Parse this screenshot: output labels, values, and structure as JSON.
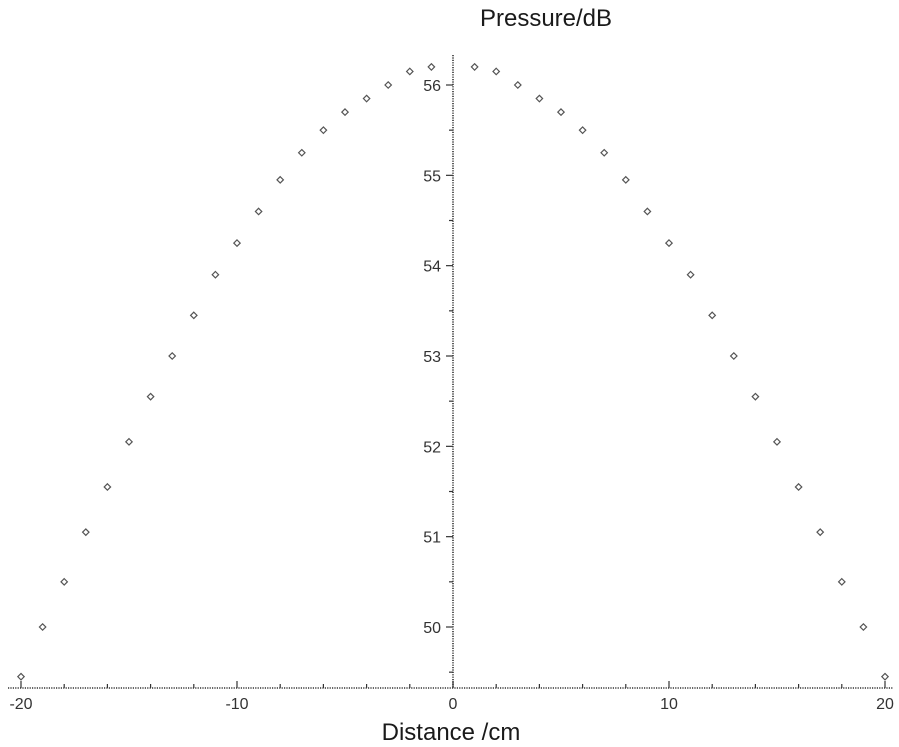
{
  "chart_data": {
    "type": "scatter",
    "title": "",
    "xlabel": "Distance /cm",
    "ylabel": "Pressure/dB",
    "xlim": [
      -20,
      20
    ],
    "ylim": [
      49.3,
      56.3
    ],
    "x_ticks": [
      -20,
      -10,
      0,
      10,
      20
    ],
    "x_tick_labels": [
      "-20",
      "-10",
      "0",
      "10",
      "20"
    ],
    "y_ticks": [
      50,
      51,
      52,
      53,
      54,
      55,
      56
    ],
    "y_tick_labels": [
      "50",
      "51",
      "52",
      "53",
      "54",
      "55",
      "56"
    ],
    "grid": false,
    "legend": "none",
    "marker_color": "#555555",
    "series": [
      {
        "x": [
          -20,
          -19,
          -18,
          -17,
          -16,
          -15,
          -14,
          -13,
          -12,
          -11,
          -10,
          -9,
          -8,
          -7,
          -6,
          -5,
          -4,
          -3,
          -2,
          -1,
          1,
          2,
          3,
          4,
          5,
          6,
          7,
          8,
          9,
          10,
          11,
          12,
          13,
          14,
          15,
          16,
          17,
          18,
          19,
          20
        ],
        "y": [
          49.45,
          50.0,
          50.5,
          51.05,
          51.55,
          52.05,
          52.55,
          53.0,
          53.45,
          53.9,
          54.25,
          54.6,
          54.95,
          55.25,
          55.5,
          55.7,
          55.85,
          56.0,
          56.15,
          56.2,
          56.2,
          56.15,
          56.0,
          55.85,
          55.7,
          55.5,
          55.25,
          54.95,
          54.6,
          54.25,
          53.9,
          53.45,
          53.0,
          52.55,
          52.05,
          51.55,
          51.05,
          50.5,
          50.0,
          49.45
        ]
      }
    ]
  }
}
